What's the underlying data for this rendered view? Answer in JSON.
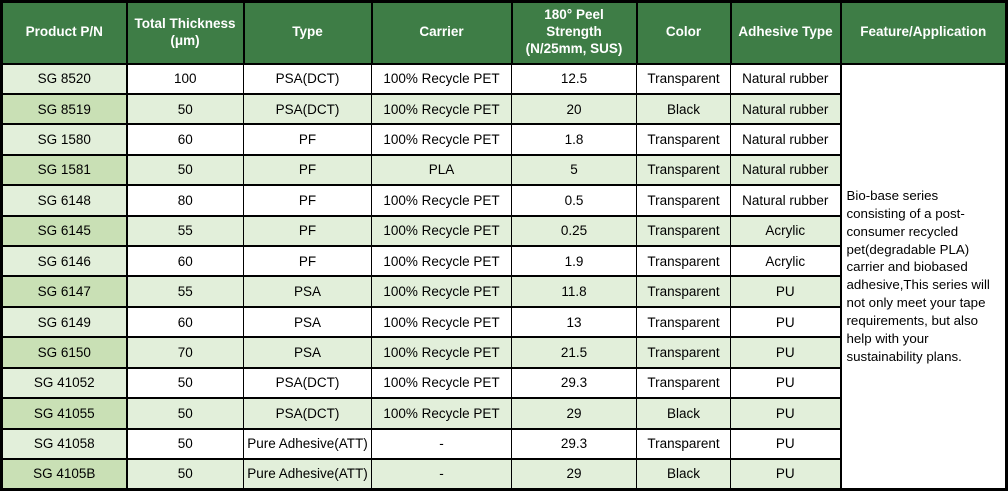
{
  "colors": {
    "header_bg": "#3E7D46",
    "header_text": "#FFFFFF",
    "row_alt": "#E2EFDA",
    "col1_odd": "#E2EFDA",
    "col1_even": "#C9E0B5",
    "border": "#000000",
    "cell_bg": "#FFFFFF"
  },
  "table": {
    "columns": [
      {
        "key": "product",
        "label": "Product P/N"
      },
      {
        "key": "thickness",
        "label": "Total Thickness\n(μm)"
      },
      {
        "key": "type",
        "label": "Type"
      },
      {
        "key": "carrier",
        "label": "Carrier"
      },
      {
        "key": "peel",
        "label": "180° Peel\nStrength\n(N/25mm, SUS)"
      },
      {
        "key": "color",
        "label": "Color"
      },
      {
        "key": "adhesive",
        "label": "Adhesive Type"
      },
      {
        "key": "feature",
        "label": "Feature/Application"
      }
    ],
    "rows": [
      {
        "product": "SG 8520",
        "thickness": "100",
        "type": "PSA(DCT)",
        "carrier": "100% Recycle PET",
        "peel": "12.5",
        "color": "Transparent",
        "adhesive": "Natural rubber"
      },
      {
        "product": "SG 8519",
        "thickness": "50",
        "type": "PSA(DCT)",
        "carrier": "100% Recycle PET",
        "peel": "20",
        "color": "Black",
        "adhesive": "Natural rubber"
      },
      {
        "product": "SG 1580",
        "thickness": "60",
        "type": "PF",
        "carrier": "100% Recycle PET",
        "peel": "1.8",
        "color": "Transparent",
        "adhesive": "Natural rubber"
      },
      {
        "product": "SG 1581",
        "thickness": "50",
        "type": "PF",
        "carrier": "PLA",
        "peel": "5",
        "color": "Transparent",
        "adhesive": "Natural rubber"
      },
      {
        "product": "SG 6148",
        "thickness": "80",
        "type": "PF",
        "carrier": "100% Recycle PET",
        "peel": "0.5",
        "color": "Transparent",
        "adhesive": "Natural rubber"
      },
      {
        "product": "SG 6145",
        "thickness": "55",
        "type": "PF",
        "carrier": "100% Recycle PET",
        "peel": "0.25",
        "color": "Transparent",
        "adhesive": "Acrylic"
      },
      {
        "product": "SG 6146",
        "thickness": "60",
        "type": "PF",
        "carrier": "100% Recycle PET",
        "peel": "1.9",
        "color": "Transparent",
        "adhesive": "Acrylic"
      },
      {
        "product": "SG 6147",
        "thickness": "55",
        "type": "PSA",
        "carrier": "100% Recycle PET",
        "peel": "11.8",
        "color": "Transparent",
        "adhesive": "PU"
      },
      {
        "product": "SG 6149",
        "thickness": "60",
        "type": "PSA",
        "carrier": "100% Recycle PET",
        "peel": "13",
        "color": "Transparent",
        "adhesive": "PU"
      },
      {
        "product": "SG 6150",
        "thickness": "70",
        "type": "PSA",
        "carrier": "100% Recycle PET",
        "peel": "21.5",
        "color": "Transparent",
        "adhesive": "PU"
      },
      {
        "product": "SG 41052",
        "thickness": "50",
        "type": "PSA(DCT)",
        "carrier": "100% Recycle PET",
        "peel": "29.3",
        "color": "Transparent",
        "adhesive": "PU"
      },
      {
        "product": "SG 41055",
        "thickness": "50",
        "type": "PSA(DCT)",
        "carrier": "100% Recycle PET",
        "peel": "29",
        "color": "Black",
        "adhesive": "PU"
      },
      {
        "product": "SG 41058",
        "thickness": "50",
        "type": "Pure Adhesive(ATT)",
        "carrier": "-",
        "peel": "29.3",
        "color": "Transparent",
        "adhesive": "PU"
      },
      {
        "product": "SG 4105B",
        "thickness": "50",
        "type": "Pure Adhesive(ATT)",
        "carrier": "-",
        "peel": "29",
        "color": "Black",
        "adhesive": "PU"
      }
    ],
    "feature": {
      "text": "Bio-base series consisting of a post-consumer recycled pet(degradable PLA) carrier and  biobased adhesive,This series will not only meet your tape requirements, but also help with your sustainability plans."
    }
  }
}
